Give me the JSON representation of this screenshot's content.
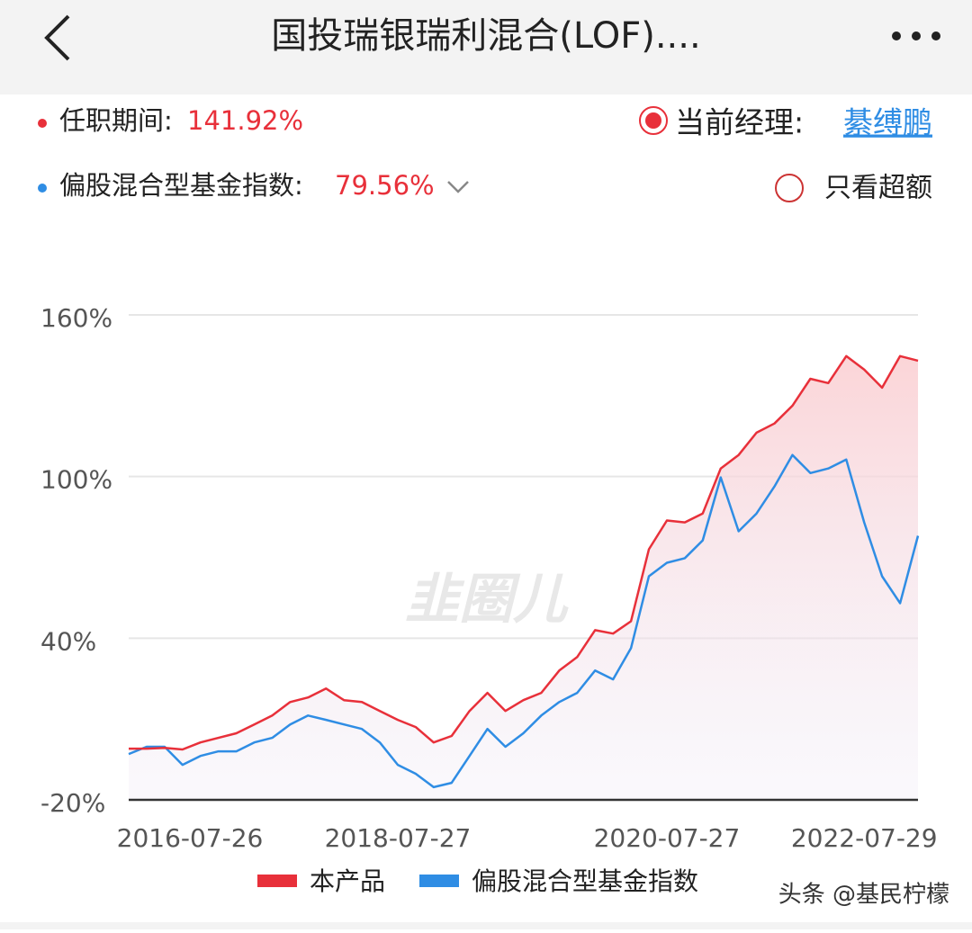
{
  "header": {
    "title": "国投瑞银瑞利混合(LOF)...."
  },
  "summary": {
    "tenure_label": "任职期间:",
    "tenure_value": "141.92%",
    "manager_label": "当前经理:",
    "manager_name": "綦缚鹏",
    "index_label": "偏股混合型基金指数:",
    "index_value": "79.56%",
    "excess_toggle": "只看超额"
  },
  "watermark": {
    "logo": "韭圈儿",
    "source": "头条 @基民柠檬"
  },
  "chart_data": {
    "type": "line",
    "categories": [
      "2016-07-26",
      null,
      null,
      null,
      null,
      null,
      null,
      null,
      null,
      null,
      null,
      null,
      null,
      null,
      null,
      "2018-07-27",
      null,
      null,
      null,
      null,
      null,
      null,
      null,
      null,
      null,
      null,
      null,
      null,
      null,
      null,
      "2020-07-27",
      null,
      null,
      null,
      null,
      null,
      null,
      null,
      null,
      null,
      null,
      "2022-07-29",
      null,
      null,
      null
    ],
    "series": [
      {
        "name": "本产品",
        "color": "#e8303a",
        "values": [
          -1,
          -1,
          -0.7,
          -1.3,
          1.3,
          3,
          4.7,
          8,
          11.3,
          16.3,
          18,
          21.3,
          17,
          16.3,
          13,
          9.7,
          7,
          1.3,
          3.7,
          13,
          19.7,
          13,
          17,
          19.7,
          28,
          33,
          43,
          41.7,
          46.3,
          73,
          83.7,
          83,
          86.3,
          103,
          108,
          116.3,
          119.7,
          126.3,
          136.3,
          134.7,
          144.7,
          139.7,
          133,
          144.7,
          143
        ]
      },
      {
        "name": "偏股混合型基金指数",
        "color": "#2f8de4",
        "values": [
          -3,
          -0.3,
          -0.3,
          -7,
          -3.7,
          -2,
          -2,
          1.3,
          3,
          8,
          11.3,
          9.7,
          8,
          6.3,
          1.3,
          -7,
          -10.3,
          -15.3,
          -13.7,
          -3.7,
          6.3,
          -0.3,
          4.7,
          11.3,
          16.3,
          19.7,
          28,
          24.7,
          36.3,
          63,
          68,
          69.7,
          76.3,
          99.7,
          79.7,
          86.3,
          96.3,
          108,
          101.3,
          103,
          106.3,
          83,
          63,
          53,
          78
        ]
      }
    ],
    "ylim": [
      -20,
      160
    ],
    "yticks": [
      {
        "value": -20,
        "label": "-20%"
      },
      {
        "value": 40,
        "label": "40%"
      },
      {
        "value": 100,
        "label": "100%"
      },
      {
        "value": 160,
        "label": "160%"
      }
    ],
    "grid": true
  }
}
